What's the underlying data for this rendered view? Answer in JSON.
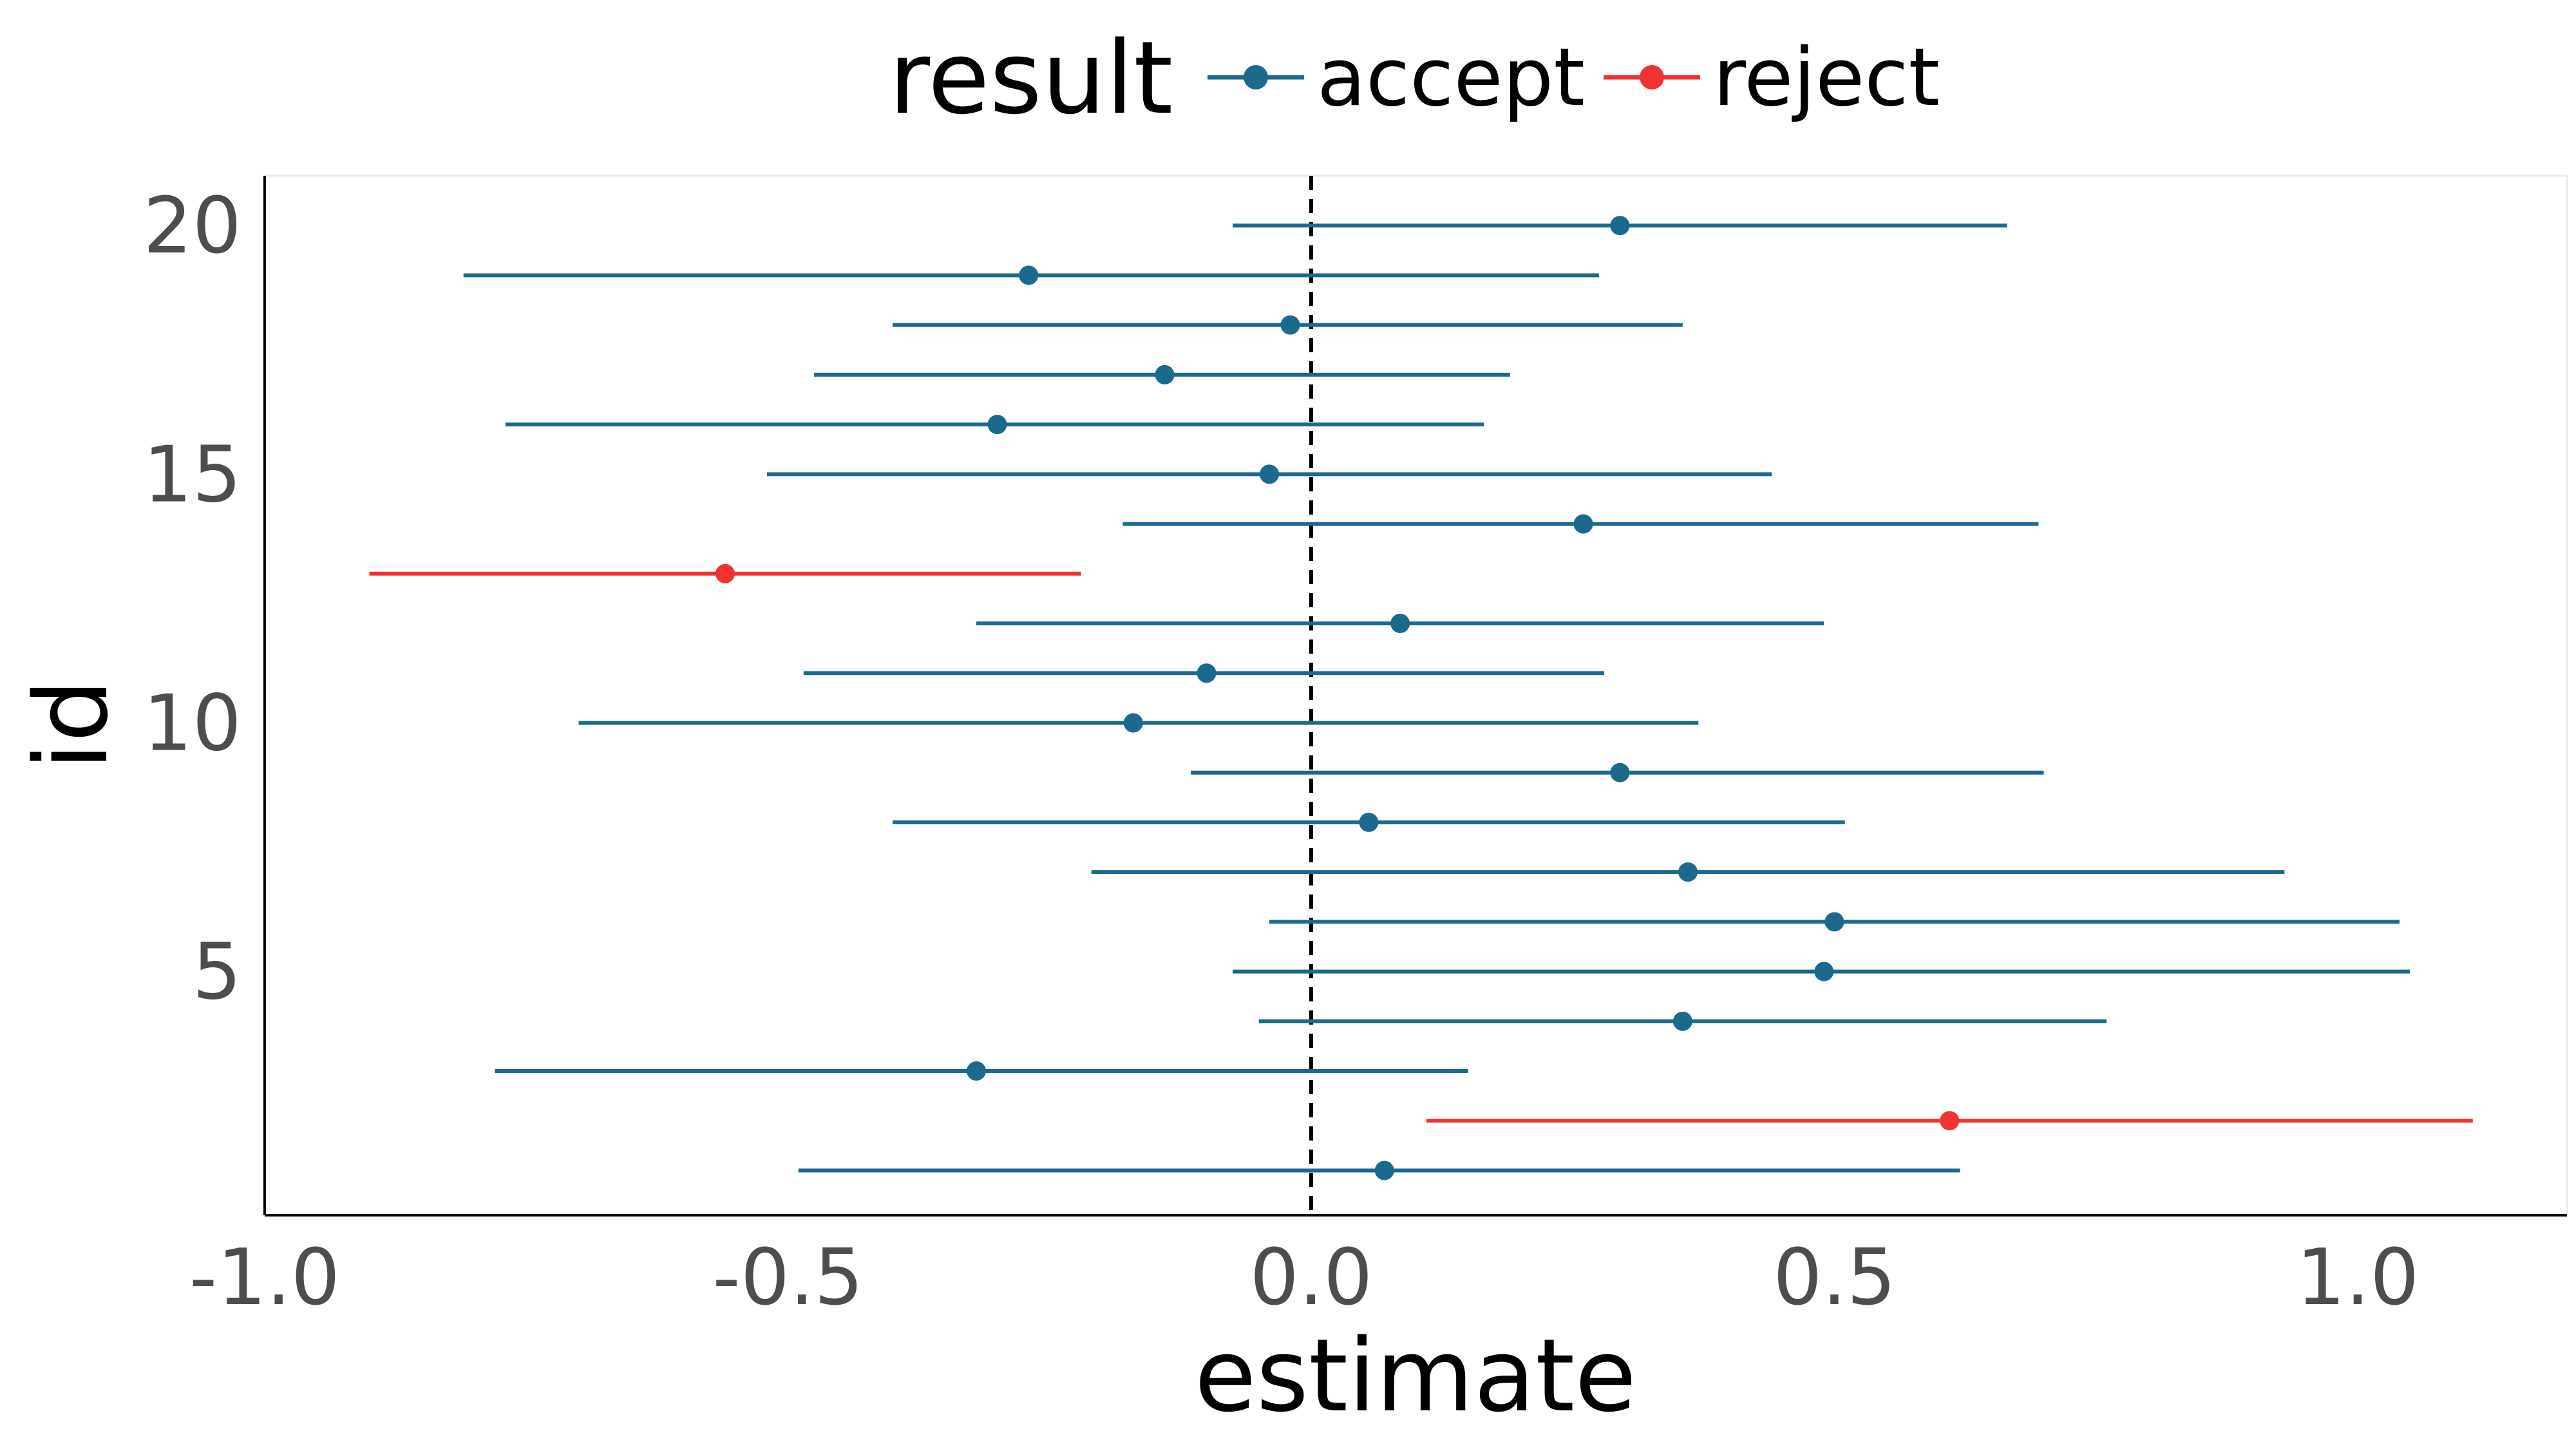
{
  "chart_data": {
    "type": "scatter",
    "subtype": "forest-plot",
    "title": "",
    "xlabel": "estimate",
    "ylabel": "id",
    "xlim": [
      -1.0,
      1.2
    ],
    "ylim": [
      0.1,
      21.0
    ],
    "x_ticks": [
      -1.0,
      -0.5,
      0.0,
      0.5,
      1.0
    ],
    "x_tick_labels": [
      "-1.0",
      "-0.5",
      "0.0",
      "0.5",
      "1.0"
    ],
    "y_ticks": [
      5,
      10,
      15,
      20
    ],
    "y_tick_labels": [
      "5",
      "10",
      "15",
      "20"
    ],
    "reference_line": {
      "x": 0.0,
      "style": "dashed"
    },
    "grid": false,
    "legend": {
      "title": "result",
      "position": "top",
      "entries": [
        {
          "label": "accept",
          "color": "#1b6a8d"
        },
        {
          "label": "reject",
          "color": "#f03232"
        }
      ]
    },
    "colors": {
      "accept": "#1b6a8d",
      "reject": "#f03232"
    },
    "points": [
      {
        "id": 1,
        "estimate": 0.07,
        "low": -0.49,
        "high": 0.62,
        "result": "accept"
      },
      {
        "id": 2,
        "estimate": 0.61,
        "low": 0.11,
        "high": 1.11,
        "result": "reject"
      },
      {
        "id": 3,
        "estimate": -0.32,
        "low": -0.78,
        "high": 0.15,
        "result": "accept"
      },
      {
        "id": 4,
        "estimate": 0.355,
        "low": -0.05,
        "high": 0.76,
        "result": "accept"
      },
      {
        "id": 5,
        "estimate": 0.49,
        "low": -0.075,
        "high": 1.05,
        "result": "accept"
      },
      {
        "id": 6,
        "estimate": 0.5,
        "low": -0.04,
        "high": 1.04,
        "result": "accept"
      },
      {
        "id": 7,
        "estimate": 0.36,
        "low": -0.21,
        "high": 0.93,
        "result": "accept"
      },
      {
        "id": 8,
        "estimate": 0.055,
        "low": -0.4,
        "high": 0.51,
        "result": "accept"
      },
      {
        "id": 9,
        "estimate": 0.295,
        "low": -0.115,
        "high": 0.7,
        "result": "accept"
      },
      {
        "id": 10,
        "estimate": -0.17,
        "low": -0.7,
        "high": 0.37,
        "result": "accept"
      },
      {
        "id": 11,
        "estimate": -0.1,
        "low": -0.485,
        "high": 0.28,
        "result": "accept"
      },
      {
        "id": 12,
        "estimate": 0.085,
        "low": -0.32,
        "high": 0.49,
        "result": "accept"
      },
      {
        "id": 13,
        "estimate": -0.56,
        "low": -0.9,
        "high": -0.22,
        "result": "reject"
      },
      {
        "id": 14,
        "estimate": 0.26,
        "low": -0.18,
        "high": 0.695,
        "result": "accept"
      },
      {
        "id": 15,
        "estimate": -0.04,
        "low": -0.52,
        "high": 0.44,
        "result": "accept"
      },
      {
        "id": 16,
        "estimate": -0.3,
        "low": -0.77,
        "high": 0.165,
        "result": "accept"
      },
      {
        "id": 17,
        "estimate": -0.14,
        "low": -0.475,
        "high": 0.19,
        "result": "accept"
      },
      {
        "id": 18,
        "estimate": -0.02,
        "low": -0.4,
        "high": 0.355,
        "result": "accept"
      },
      {
        "id": 19,
        "estimate": -0.27,
        "low": -0.81,
        "high": 0.275,
        "result": "accept"
      },
      {
        "id": 20,
        "estimate": 0.295,
        "low": -0.075,
        "high": 0.665,
        "result": "accept"
      }
    ]
  }
}
